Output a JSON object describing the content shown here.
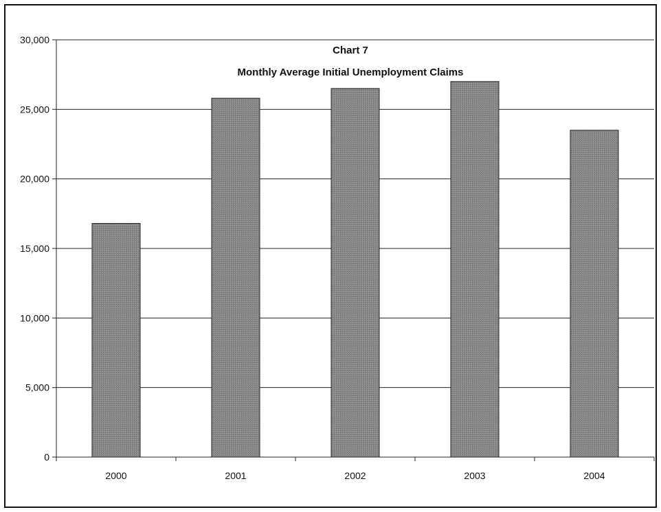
{
  "chart_data": {
    "type": "bar",
    "title": "Chart 7",
    "subtitle": "Monthly Average Initial Unemployment Claims",
    "xlabel": "",
    "ylabel": "",
    "categories": [
      "2000",
      "2001",
      "2002",
      "2003",
      "2004"
    ],
    "values": [
      16800,
      25800,
      26500,
      27000,
      23500
    ],
    "ylim": [
      0,
      30000
    ],
    "yticks": [
      0,
      5000,
      10000,
      15000,
      20000,
      25000,
      30000
    ],
    "ytick_labels": [
      "0",
      "5,000",
      "10,000",
      "15,000",
      "20,000",
      "25,000",
      "30,000"
    ],
    "grid": true,
    "legend": "none",
    "bar_color": "#808080"
  }
}
